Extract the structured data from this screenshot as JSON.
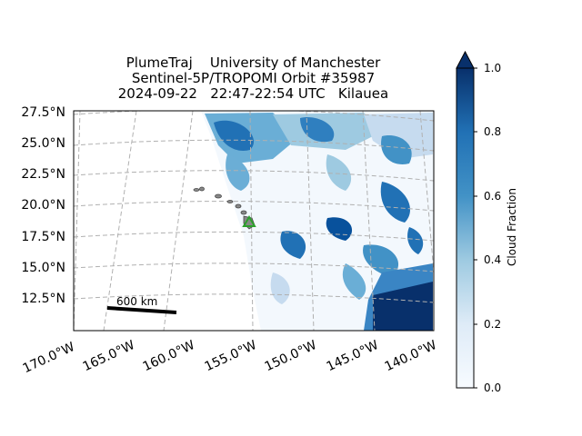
{
  "title": {
    "line1": "PlumeTraj    University of Manchester",
    "line2": "Sentinel-5P/TROPOMI Orbit #35987",
    "line3": "2024-09-22   22:47-22:54 UTC   Kilauea"
  },
  "map": {
    "lat_labels": [
      "27.5°N",
      "25.0°N",
      "22.5°N",
      "20.0°N",
      "17.5°N",
      "15.0°N",
      "12.5°N"
    ],
    "lon_labels": [
      "170.0°W",
      "165.0°W",
      "160.0°W",
      "155.0°W",
      "150.0°W",
      "145.0°W",
      "140.0°W"
    ],
    "scale_bar_label": "600 km",
    "volcano_marker_color": "#2ca02c",
    "gridline_color": "#b0b0b0"
  },
  "colorbar": {
    "label": "Cloud Fraction",
    "ticks": [
      "0.0",
      "0.2",
      "0.4",
      "0.6",
      "0.8",
      "1.0"
    ],
    "colormap": "Blues",
    "extend": "max",
    "min_color": "#f7fbff",
    "max_color": "#08306b"
  }
}
